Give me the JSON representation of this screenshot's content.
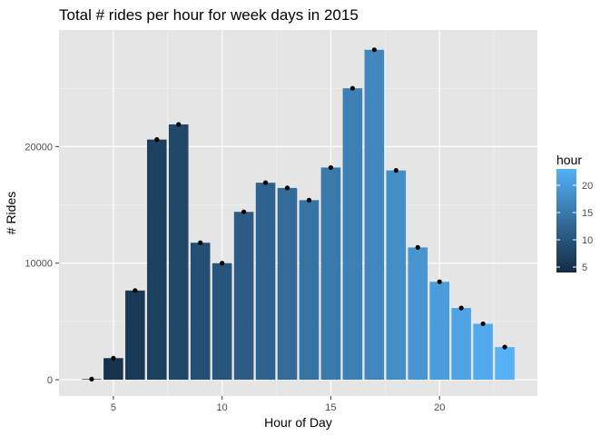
{
  "chart_data": {
    "type": "bar",
    "title": "Total # rides per hour for week days in 2015",
    "xlabel": "Hour of Day",
    "ylabel": "# Rides",
    "x": [
      4,
      5,
      6,
      7,
      8,
      9,
      10,
      11,
      12,
      13,
      14,
      15,
      16,
      17,
      18,
      19,
      20,
      21,
      22,
      23
    ],
    "values": [
      50,
      1850,
      7650,
      20600,
      21900,
      11750,
      10000,
      14400,
      16900,
      16450,
      15400,
      18200,
      25000,
      28300,
      17950,
      11350,
      8400,
      6150,
      4800,
      2800
    ],
    "xlim": [
      2.5,
      24.5
    ],
    "ylim": [
      -1400,
      30000
    ],
    "x_ticks": [
      5,
      10,
      15,
      20
    ],
    "x_tick_labels": [
      "5",
      "10",
      "15",
      "20"
    ],
    "y_ticks": [
      0,
      10000,
      20000
    ],
    "y_tick_labels": [
      "0",
      "10000",
      "20000"
    ],
    "points": true,
    "grid": true,
    "panel_background": "#e5e5e5",
    "legend": {
      "title": "hour",
      "position": "right",
      "type": "colorbar",
      "ticks": [
        5,
        10,
        15,
        20
      ],
      "tick_labels": [
        "5",
        "10",
        "15",
        "20"
      ],
      "range": [
        4,
        23
      ],
      "colors": {
        "low": "#132b43",
        "high": "#56b1f7"
      }
    }
  }
}
